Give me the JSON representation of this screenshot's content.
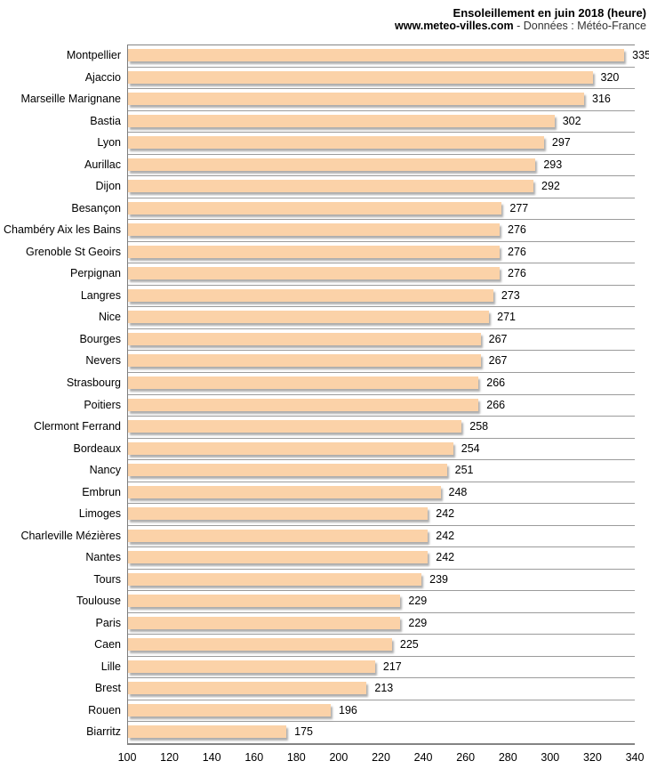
{
  "header": {
    "title": "Ensoleillement en juin 2018 (heure)",
    "source_site": "www.meteo-villes.com",
    "source_rest": " - Données : Météo-France"
  },
  "chart_data": {
    "type": "bar",
    "orientation": "horizontal",
    "title": "Ensoleillement en juin 2018 (heure)",
    "subtitle": "www.meteo-villes.com - Données : Météo-France",
    "xlabel": "",
    "ylabel": "",
    "xlim": [
      100,
      340
    ],
    "x_ticks": [
      100,
      120,
      140,
      160,
      180,
      200,
      220,
      240,
      260,
      280,
      300,
      320,
      340
    ],
    "grid": "row-separator-lines",
    "legend": "none",
    "bar_color": "#FBD2A8",
    "categories": [
      "Montpellier",
      "Ajaccio",
      "Marseille Marignane",
      "Bastia",
      "Lyon",
      "Aurillac",
      "Dijon",
      "Besançon",
      "Chambéry Aix les Bains",
      "Grenoble St Geoirs",
      "Perpignan",
      "Langres",
      "Nice",
      "Bourges",
      "Nevers",
      "Strasbourg",
      "Poitiers",
      "Clermont Ferrand",
      "Bordeaux",
      "Nancy",
      "Embrun",
      "Limoges",
      "Charleville Mézières",
      "Nantes",
      "Tours",
      "Toulouse",
      "Paris",
      "Caen",
      "Lille",
      "Brest",
      "Rouen",
      "Biarritz"
    ],
    "values": [
      335,
      320,
      316,
      302,
      297,
      293,
      292,
      277,
      276,
      276,
      276,
      273,
      271,
      267,
      267,
      266,
      266,
      258,
      254,
      251,
      248,
      242,
      242,
      242,
      239,
      229,
      229,
      225,
      217,
      213,
      196,
      175
    ]
  }
}
